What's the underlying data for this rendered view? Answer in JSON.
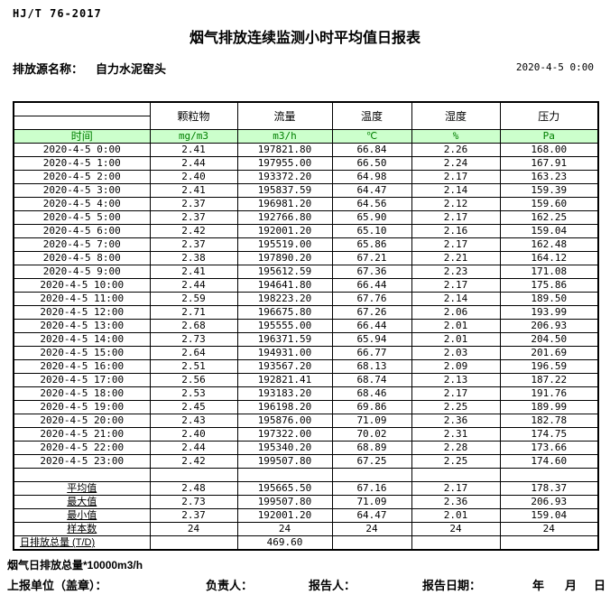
{
  "header": {
    "standard": "HJ/T 76-2017",
    "title": "烟气排放连续监测小时平均值日报表",
    "source_label": "排放源名称：",
    "source_name": "自力水泥窑头",
    "datetime": "2020-4-5 0:00"
  },
  "table": {
    "time_label": "时间",
    "columns": [
      "颗粒物",
      "流量",
      "温度",
      "湿度",
      "压力"
    ],
    "units": [
      "mg/m3",
      "m3/h",
      "℃",
      "%",
      "Pa"
    ],
    "header_bg": "#ccffcc",
    "header_text_color": "#008000",
    "rows": [
      {
        "time": "2020-4-5 0:00",
        "pm": "2.41",
        "flow": "197821.80",
        "temp": "66.84",
        "humidity": "2.26",
        "pressure": "168.00"
      },
      {
        "time": "2020-4-5 1:00",
        "pm": "2.44",
        "flow": "197955.00",
        "temp": "66.50",
        "humidity": "2.24",
        "pressure": "167.91"
      },
      {
        "time": "2020-4-5 2:00",
        "pm": "2.40",
        "flow": "193372.20",
        "temp": "64.98",
        "humidity": "2.17",
        "pressure": "163.23"
      },
      {
        "time": "2020-4-5 3:00",
        "pm": "2.41",
        "flow": "195837.59",
        "temp": "64.47",
        "humidity": "2.14",
        "pressure": "159.39"
      },
      {
        "time": "2020-4-5 4:00",
        "pm": "2.37",
        "flow": "196981.20",
        "temp": "64.56",
        "humidity": "2.12",
        "pressure": "159.60"
      },
      {
        "time": "2020-4-5 5:00",
        "pm": "2.37",
        "flow": "192766.80",
        "temp": "65.90",
        "humidity": "2.17",
        "pressure": "162.25"
      },
      {
        "time": "2020-4-5 6:00",
        "pm": "2.42",
        "flow": "192001.20",
        "temp": "65.10",
        "humidity": "2.16",
        "pressure": "159.04"
      },
      {
        "time": "2020-4-5 7:00",
        "pm": "2.37",
        "flow": "195519.00",
        "temp": "65.86",
        "humidity": "2.17",
        "pressure": "162.48"
      },
      {
        "time": "2020-4-5 8:00",
        "pm": "2.38",
        "flow": "197890.20",
        "temp": "67.21",
        "humidity": "2.21",
        "pressure": "164.12"
      },
      {
        "time": "2020-4-5 9:00",
        "pm": "2.41",
        "flow": "195612.59",
        "temp": "67.36",
        "humidity": "2.23",
        "pressure": "171.08"
      },
      {
        "time": "2020-4-5 10:00",
        "pm": "2.44",
        "flow": "194641.80",
        "temp": "66.44",
        "humidity": "2.17",
        "pressure": "175.86"
      },
      {
        "time": "2020-4-5 11:00",
        "pm": "2.59",
        "flow": "198223.20",
        "temp": "67.76",
        "humidity": "2.14",
        "pressure": "189.50"
      },
      {
        "time": "2020-4-5 12:00",
        "pm": "2.71",
        "flow": "196675.80",
        "temp": "67.26",
        "humidity": "2.06",
        "pressure": "193.99"
      },
      {
        "time": "2020-4-5 13:00",
        "pm": "2.68",
        "flow": "195555.00",
        "temp": "66.44",
        "humidity": "2.01",
        "pressure": "206.93"
      },
      {
        "time": "2020-4-5 14:00",
        "pm": "2.73",
        "flow": "196371.59",
        "temp": "65.94",
        "humidity": "2.01",
        "pressure": "204.50"
      },
      {
        "time": "2020-4-5 15:00",
        "pm": "2.64",
        "flow": "194931.00",
        "temp": "66.77",
        "humidity": "2.03",
        "pressure": "201.69"
      },
      {
        "time": "2020-4-5 16:00",
        "pm": "2.51",
        "flow": "193567.20",
        "temp": "68.13",
        "humidity": "2.09",
        "pressure": "196.59"
      },
      {
        "time": "2020-4-5 17:00",
        "pm": "2.56",
        "flow": "192821.41",
        "temp": "68.74",
        "humidity": "2.13",
        "pressure": "187.22"
      },
      {
        "time": "2020-4-5 18:00",
        "pm": "2.53",
        "flow": "193183.20",
        "temp": "68.46",
        "humidity": "2.17",
        "pressure": "191.76"
      },
      {
        "time": "2020-4-5 19:00",
        "pm": "2.45",
        "flow": "196198.20",
        "temp": "69.86",
        "humidity": "2.25",
        "pressure": "189.99"
      },
      {
        "time": "2020-4-5 20:00",
        "pm": "2.43",
        "flow": "195876.00",
        "temp": "71.09",
        "humidity": "2.36",
        "pressure": "182.78"
      },
      {
        "time": "2020-4-5 21:00",
        "pm": "2.40",
        "flow": "197322.00",
        "temp": "70.02",
        "humidity": "2.31",
        "pressure": "174.75"
      },
      {
        "time": "2020-4-5 22:00",
        "pm": "2.44",
        "flow": "195340.20",
        "temp": "68.89",
        "humidity": "2.28",
        "pressure": "173.66"
      },
      {
        "time": "2020-4-5 23:00",
        "pm": "2.42",
        "flow": "199507.80",
        "temp": "67.25",
        "humidity": "2.25",
        "pressure": "174.60"
      }
    ],
    "summary": [
      {
        "label": "平均值",
        "pm": "2.48",
        "flow": "195665.50",
        "temp": "67.16",
        "humidity": "2.17",
        "pressure": "178.37"
      },
      {
        "label": "最大值",
        "pm": "2.73",
        "flow": "199507.80",
        "temp": "71.09",
        "humidity": "2.36",
        "pressure": "206.93"
      },
      {
        "label": "最小值",
        "pm": "2.37",
        "flow": "192001.20",
        "temp": "64.47",
        "humidity": "2.01",
        "pressure": "159.04"
      },
      {
        "label": "样本数",
        "pm": "24",
        "flow": "24",
        "temp": "24",
        "humidity": "24",
        "pressure": "24"
      },
      {
        "label": "日排放总量 (T/D)",
        "pm": "",
        "flow": "469.60",
        "temp": "",
        "humidity": "",
        "pressure": ""
      }
    ]
  },
  "footer": {
    "note": "烟气日排放总量*10000m3/h",
    "report_unit_label": "上报单位（盖章）：",
    "manager_label": "负责人：",
    "reporter_label": "报告人：",
    "report_date_label": "报告日期：",
    "year_label": "年",
    "month_label": "月",
    "day_label": "日"
  }
}
